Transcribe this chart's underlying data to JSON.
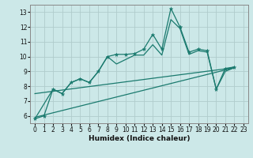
{
  "xlabel": "Humidex (Indice chaleur)",
  "ylabel": "",
  "bg_color": "#cce8e8",
  "plot_bg_color": "#cce8e8",
  "grid_color": "#b0cccc",
  "line_color": "#1a7a6e",
  "xlim": [
    -0.5,
    23.5
  ],
  "ylim": [
    5.5,
    13.5
  ],
  "xticks": [
    0,
    1,
    2,
    3,
    4,
    5,
    6,
    7,
    8,
    9,
    10,
    11,
    12,
    13,
    14,
    15,
    16,
    17,
    18,
    19,
    20,
    21,
    22,
    23
  ],
  "yticks": [
    6,
    7,
    8,
    9,
    10,
    11,
    12,
    13
  ],
  "line1_x": [
    0,
    1,
    2,
    3,
    4,
    5,
    6,
    7,
    8,
    9,
    10,
    11,
    12,
    13,
    14,
    15,
    16,
    17,
    18,
    19,
    20,
    21,
    22
  ],
  "line1_y": [
    5.8,
    6.0,
    7.8,
    7.5,
    8.25,
    8.5,
    8.25,
    9.0,
    10.0,
    10.15,
    10.15,
    10.2,
    10.5,
    11.5,
    10.5,
    13.25,
    12.0,
    10.3,
    10.5,
    10.4,
    7.8,
    9.2,
    9.3
  ],
  "line2_x": [
    0,
    2,
    3,
    4,
    5,
    6,
    7,
    8,
    9,
    10,
    11,
    12,
    13,
    14,
    15,
    16,
    17,
    18,
    19,
    20,
    21,
    22
  ],
  "line2_y": [
    5.8,
    7.8,
    7.5,
    8.25,
    8.5,
    8.25,
    9.0,
    10.0,
    9.5,
    9.8,
    10.1,
    10.1,
    10.8,
    10.1,
    12.5,
    11.9,
    10.15,
    10.4,
    10.3,
    7.8,
    9.0,
    9.25
  ],
  "line3_x": [
    0,
    22
  ],
  "line3_y": [
    5.9,
    9.25
  ],
  "line4_x": [
    0,
    22
  ],
  "line4_y": [
    7.5,
    9.25
  ]
}
